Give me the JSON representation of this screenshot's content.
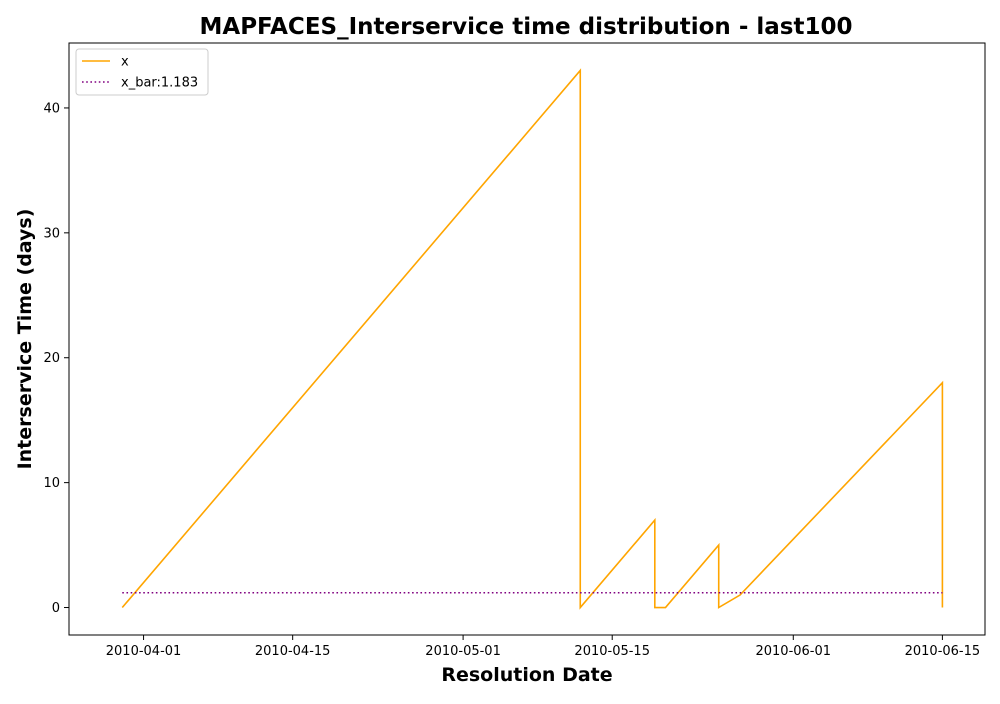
{
  "chart_data": {
    "type": "line",
    "title": "MAPFACES_Interservice time distribution - last100",
    "xlabel": "Resolution Date",
    "ylabel": "Interservice Time (days)",
    "x_axis_type": "date",
    "xlim": [
      "2010-03-25",
      "2010-06-19"
    ],
    "ylim": [
      -2.2,
      45.2
    ],
    "x_ticks": [
      "2010-04-01",
      "2010-04-15",
      "2010-05-01",
      "2010-05-15",
      "2010-06-01",
      "2010-06-15"
    ],
    "y_ticks": [
      0,
      10,
      20,
      30,
      40
    ],
    "grid": false,
    "legend_position": "top-left",
    "series": [
      {
        "name": "x",
        "color": "#ffa500",
        "line_style": "solid",
        "points": [
          [
            "2010-03-30",
            0
          ],
          [
            "2010-05-12",
            43
          ],
          [
            "2010-05-12",
            0
          ],
          [
            "2010-05-19",
            7
          ],
          [
            "2010-05-19",
            0
          ],
          [
            "2010-05-20",
            0
          ],
          [
            "2010-05-25",
            5
          ],
          [
            "2010-05-25",
            0
          ],
          [
            "2010-05-27",
            1
          ],
          [
            "2010-06-15",
            18
          ],
          [
            "2010-06-15",
            0
          ]
        ]
      },
      {
        "name": "x_bar:1.183",
        "color": "#800080",
        "line_style": "dotted",
        "points": [
          [
            "2010-03-30",
            1.183
          ],
          [
            "2010-06-15",
            1.183
          ]
        ]
      }
    ]
  }
}
